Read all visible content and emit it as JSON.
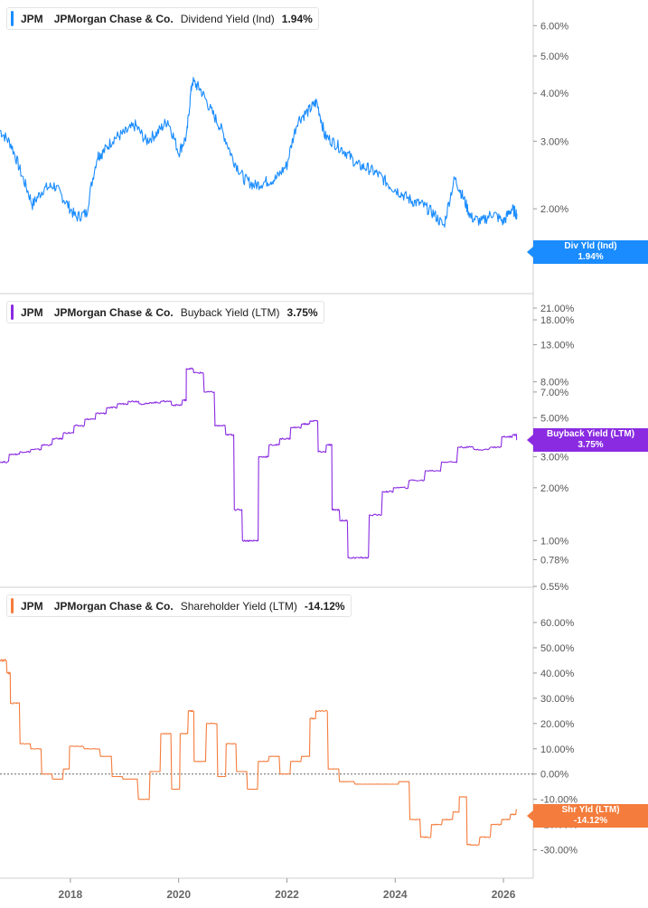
{
  "panels": [
    {
      "ticker": "JPM",
      "company": "JPMorgan Chase & Co.",
      "metric": "Dividend Yield (Ind)",
      "value": "1.94%",
      "callout_label": "Div Yld (Ind)",
      "callout_value": "1.94%",
      "color": "#1a8cff",
      "axis_ticks": [
        "6.00%",
        "5.00%",
        "4.00%",
        "3.00%",
        "2.00%"
      ]
    },
    {
      "ticker": "JPM",
      "company": "JPMorgan Chase & Co.",
      "metric": "Buyback Yield (LTM)",
      "value": "3.75%",
      "callout_label": "Buyback Yield (LTM)",
      "callout_value": "3.75%",
      "color": "#8a2be2",
      "axis_ticks": [
        "21.00%",
        "18.00%",
        "13.00%",
        "8.00%",
        "7.00%",
        "5.00%",
        "3.00%",
        "2.00%",
        "1.00%",
        "0.78%",
        "0.55%"
      ]
    },
    {
      "ticker": "JPM",
      "company": "JPMorgan Chase & Co.",
      "metric": "Shareholder Yield (LTM)",
      "value": "-14.12%",
      "callout_label": "Shr Yld (LTM)",
      "callout_value": "-14.12%",
      "color": "#f47c3c",
      "axis_ticks": [
        "60.00%",
        "50.00%",
        "40.00%",
        "30.00%",
        "20.00%",
        "10.00%",
        "0.00%",
        "-10.00%",
        "-20.00%",
        "-30.00%"
      ]
    }
  ],
  "x_axis_labels": [
    "2018",
    "2020",
    "2022",
    "2024",
    "2026"
  ],
  "chart_data": [
    {
      "type": "line",
      "y_scale": "log",
      "ylim": [
        1.62,
        6.45
      ],
      "x": [
        2016.7,
        2016.9,
        2017.1,
        2017.3,
        2017.5,
        2017.7,
        2017.9,
        2018.1,
        2018.3,
        2018.5,
        2018.6,
        2018.8,
        2019.0,
        2019.2,
        2019.4,
        2019.6,
        2019.8,
        2020.0,
        2020.15,
        2020.25,
        2020.4,
        2020.6,
        2020.8,
        2021.0,
        2021.2,
        2021.4,
        2021.6,
        2021.8,
        2022.0,
        2022.2,
        2022.4,
        2022.55,
        2022.7,
        2022.9,
        2023.1,
        2023.3,
        2023.5,
        2023.7,
        2023.9,
        2024.1,
        2024.3,
        2024.5,
        2024.7,
        2024.9,
        2025.1,
        2025.25,
        2025.4,
        2025.6,
        2025.8,
        2026.0,
        2026.15,
        2026.25
      ],
      "series": [
        {
          "values": [
            3.2,
            2.95,
            2.45,
            2.05,
            2.25,
            2.3,
            2.1,
            1.9,
            1.95,
            2.75,
            2.8,
            3.05,
            3.15,
            3.3,
            3.0,
            3.15,
            3.4,
            2.8,
            3.1,
            4.3,
            4.1,
            3.6,
            3.2,
            2.7,
            2.4,
            2.3,
            2.35,
            2.4,
            2.6,
            3.4,
            3.6,
            3.8,
            3.1,
            2.95,
            2.8,
            2.6,
            2.55,
            2.45,
            2.3,
            2.2,
            2.1,
            2.05,
            1.95,
            1.8,
            2.4,
            2.15,
            1.9,
            1.85,
            1.95,
            1.85,
            2.0,
            1.94
          ]
        }
      ]
    },
    {
      "type": "line",
      "y_scale": "log",
      "ylim": [
        0.55,
        21.0
      ],
      "x": [
        2016.7,
        2016.9,
        2017.1,
        2017.3,
        2017.5,
        2017.7,
        2017.9,
        2018.1,
        2018.3,
        2018.5,
        2018.7,
        2018.9,
        2019.1,
        2019.3,
        2019.5,
        2019.7,
        2019.9,
        2020.1,
        2020.15,
        2020.3,
        2020.5,
        2020.7,
        2020.9,
        2021.05,
        2021.2,
        2021.35,
        2021.5,
        2021.7,
        2021.9,
        2022.1,
        2022.3,
        2022.45,
        2022.6,
        2022.75,
        2022.85,
        2023.0,
        2023.15,
        2023.35,
        2023.55,
        2023.8,
        2024.0,
        2024.3,
        2024.6,
        2024.9,
        2025.2,
        2025.5,
        2025.8,
        2026.0,
        2026.2,
        2026.25
      ],
      "series": [
        {
          "values": [
            2.8,
            3.1,
            3.2,
            3.3,
            3.5,
            3.8,
            4.1,
            4.5,
            4.9,
            5.3,
            5.7,
            6.0,
            6.2,
            6.0,
            6.1,
            6.2,
            5.9,
            6.3,
            9.5,
            9.0,
            7.0,
            4.5,
            4.0,
            1.5,
            1.0,
            1.0,
            3.0,
            3.5,
            3.8,
            4.4,
            4.6,
            4.8,
            3.2,
            3.5,
            1.5,
            1.3,
            0.8,
            0.8,
            1.4,
            1.9,
            2.0,
            2.2,
            2.5,
            2.8,
            3.4,
            3.3,
            3.4,
            3.9,
            4.0,
            3.75
          ]
        }
      ]
    },
    {
      "type": "line",
      "y_scale": "linear",
      "ylim": [
        -33.0,
        60.0
      ],
      "x": [
        2016.7,
        2016.85,
        2016.9,
        2017.1,
        2017.3,
        2017.5,
        2017.7,
        2017.9,
        2018.0,
        2018.3,
        2018.6,
        2018.8,
        2019.0,
        2019.3,
        2019.5,
        2019.7,
        2019.9,
        2020.05,
        2020.2,
        2020.3,
        2020.55,
        2020.75,
        2020.9,
        2021.1,
        2021.3,
        2021.5,
        2021.7,
        2021.9,
        2022.1,
        2022.3,
        2022.45,
        2022.55,
        2022.8,
        2023.0,
        2023.3,
        2023.6,
        2023.9,
        2024.1,
        2024.3,
        2024.5,
        2024.7,
        2024.9,
        2025.1,
        2025.2,
        2025.35,
        2025.6,
        2025.8,
        2026.0,
        2026.15,
        2026.25
      ],
      "series": [
        {
          "values": [
            45,
            40,
            28,
            12,
            10,
            0,
            -2,
            2,
            11,
            10,
            7,
            -1,
            -2,
            -10,
            1,
            16,
            -6,
            16,
            25,
            5,
            20,
            -1,
            12,
            1,
            -6,
            5,
            7,
            0,
            5,
            7,
            22,
            25,
            2,
            -3,
            -4,
            -4,
            -4,
            -3,
            -18,
            -25,
            -20,
            -18,
            -15,
            -9,
            -28,
            -25,
            -20,
            -18,
            -16,
            -14.12
          ]
        }
      ]
    }
  ]
}
